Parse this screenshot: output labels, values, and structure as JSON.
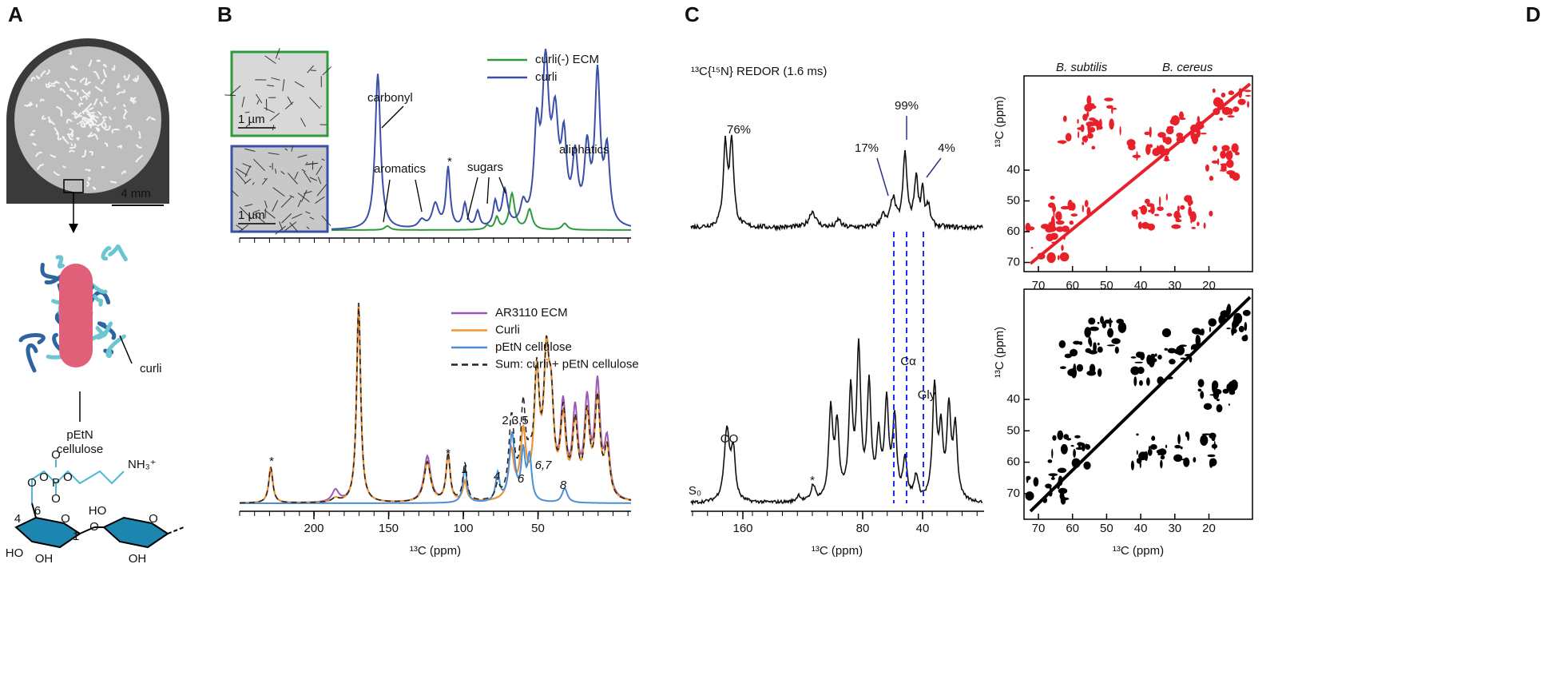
{
  "panel_labels": [
    "A",
    "B",
    "C",
    "D"
  ],
  "panel_a": {
    "scale_bar": "4 mm",
    "curli_label": "curli",
    "cellulose_label": [
      "pEtN",
      "cellulose"
    ],
    "molecule": {
      "amine": "NH₃⁺",
      "phosphate": [
        "O",
        "P",
        "O",
        "O",
        "O",
        "O"
      ],
      "ring": [
        "HO",
        "OH",
        "HO",
        "OH",
        "O",
        "O",
        "O"
      ],
      "numbers": [
        "6",
        "4",
        "1"
      ]
    }
  },
  "panel_b": {
    "top_legend": [
      "curli(-) ECM",
      "curli"
    ],
    "inset_scale": [
      "1 µm",
      "1 µm"
    ],
    "top_annotations": [
      "carbonyl",
      "aromatics",
      "sugars",
      "aliphatics",
      "*"
    ],
    "bottom_legend": [
      "AR3110 ECM",
      "Curli",
      "pEtN cellulose",
      "Sum: curli + pEtN cellulose"
    ],
    "peak_labels": [
      "*",
      "*",
      "1",
      "2,3,5",
      "4",
      "6",
      "6,7",
      "8"
    ],
    "x_ticks": [
      200,
      150,
      100,
      50
    ],
    "x_label": "¹³C (ppm)"
  },
  "panel_c": {
    "title": "¹³C{¹⁵N} REDOR (1.6 ms)",
    "percent_labels": [
      "76%",
      "17%",
      "99%",
      "4%"
    ],
    "bottom_labels": [
      "CO",
      "*",
      "S₀",
      "Cα",
      "Gly"
    ],
    "x_ticks": [
      160,
      80,
      40
    ],
    "x_label": "¹³C (ppm)"
  },
  "panel_d": {
    "titles": [
      "B. subtilis",
      "B. cereus"
    ],
    "y_label": "¹³C (ppm)",
    "x_label": "¹³C (ppm)",
    "x_ticks": [
      70,
      60,
      50,
      40,
      30,
      20
    ],
    "top_y_ticks": [
      40,
      50,
      60,
      70
    ],
    "bottom_y_ticks": [
      40,
      50,
      60,
      70
    ]
  }
}
